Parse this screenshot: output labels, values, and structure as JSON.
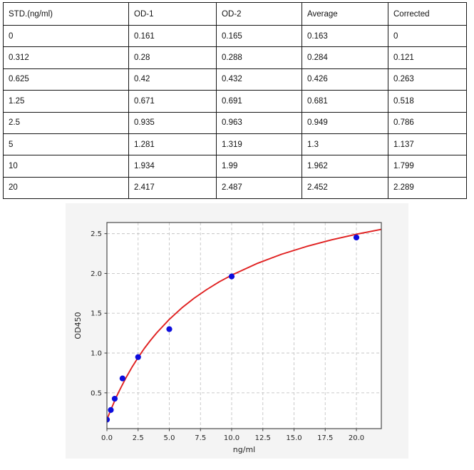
{
  "table": {
    "headers": [
      "STD.(ng/ml)",
      "OD-1",
      "OD-2",
      "Average",
      "Corrected"
    ],
    "rows": [
      [
        "0",
        "0.161",
        "0.165",
        "0.163",
        "0"
      ],
      [
        "0.312",
        "0.28",
        "0.288",
        "0.284",
        "0.121"
      ],
      [
        "0.625",
        "0.42",
        "0.432",
        "0.426",
        "0.263"
      ],
      [
        "1.25",
        "0.671",
        "0.691",
        "0.681",
        "0.518"
      ],
      [
        "2.5",
        "0.935",
        "0.963",
        "0.949",
        "0.786"
      ],
      [
        "5",
        "1.281",
        "1.319",
        "1.3",
        "1.137"
      ],
      [
        "10",
        "1.934",
        "1.99",
        "1.962",
        "1.799"
      ],
      [
        "20",
        "2.417",
        "2.487",
        "2.452",
        "2.289"
      ]
    ]
  },
  "chart_data": {
    "type": "scatter",
    "title": "",
    "xlabel": "ng/ml",
    "ylabel": "OD450",
    "xlim": [
      0,
      22
    ],
    "ylim": [
      0.05,
      2.64
    ],
    "xtick_labels": [
      "0.0",
      "2.5",
      "5.0",
      "7.5",
      "10.0",
      "12.5",
      "15.0",
      "17.5",
      "20.0"
    ],
    "ytick_labels": [
      "0.5",
      "1.0",
      "1.5",
      "2.0",
      "2.5"
    ],
    "grid": "dashed",
    "legend": "none",
    "series": [
      {
        "name": "standard-points",
        "type": "scatter",
        "color": "#0d0ddd",
        "x": [
          0,
          0.312,
          0.625,
          1.25,
          2.5,
          5,
          10,
          20
        ],
        "y": [
          0.163,
          0.284,
          0.426,
          0.681,
          0.949,
          1.3,
          1.962,
          2.452
        ]
      },
      {
        "name": "fit-curve",
        "type": "line",
        "color": "#e02020",
        "x": [
          0,
          0.1,
          0.2,
          0.3,
          0.5,
          0.75,
          1,
          1.5,
          2,
          2.5,
          3,
          3.5,
          4,
          5,
          6,
          7,
          8,
          9,
          10,
          12,
          14,
          16,
          18,
          20,
          22
        ],
        "y": [
          0.163,
          0.204,
          0.243,
          0.282,
          0.356,
          0.445,
          0.528,
          0.682,
          0.82,
          0.944,
          1.058,
          1.161,
          1.255,
          1.423,
          1.566,
          1.69,
          1.798,
          1.894,
          1.979,
          2.123,
          2.241,
          2.339,
          2.422,
          2.493,
          2.554
        ]
      }
    ],
    "colors": {
      "figure_bg": "#f4f4f4",
      "axes_bg": "#ffffff",
      "grid": "#c4c4c4",
      "spine": "#3a3a3a",
      "tick_label": "#262626"
    }
  }
}
